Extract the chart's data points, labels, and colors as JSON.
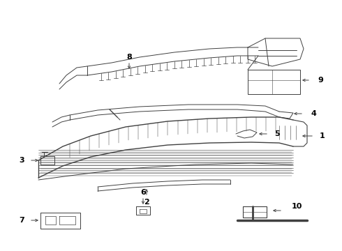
{
  "background_color": "#ffffff",
  "line_color": "#404040",
  "label_color": "#000000",
  "fig_width": 4.9,
  "fig_height": 3.6,
  "dpi": 100
}
